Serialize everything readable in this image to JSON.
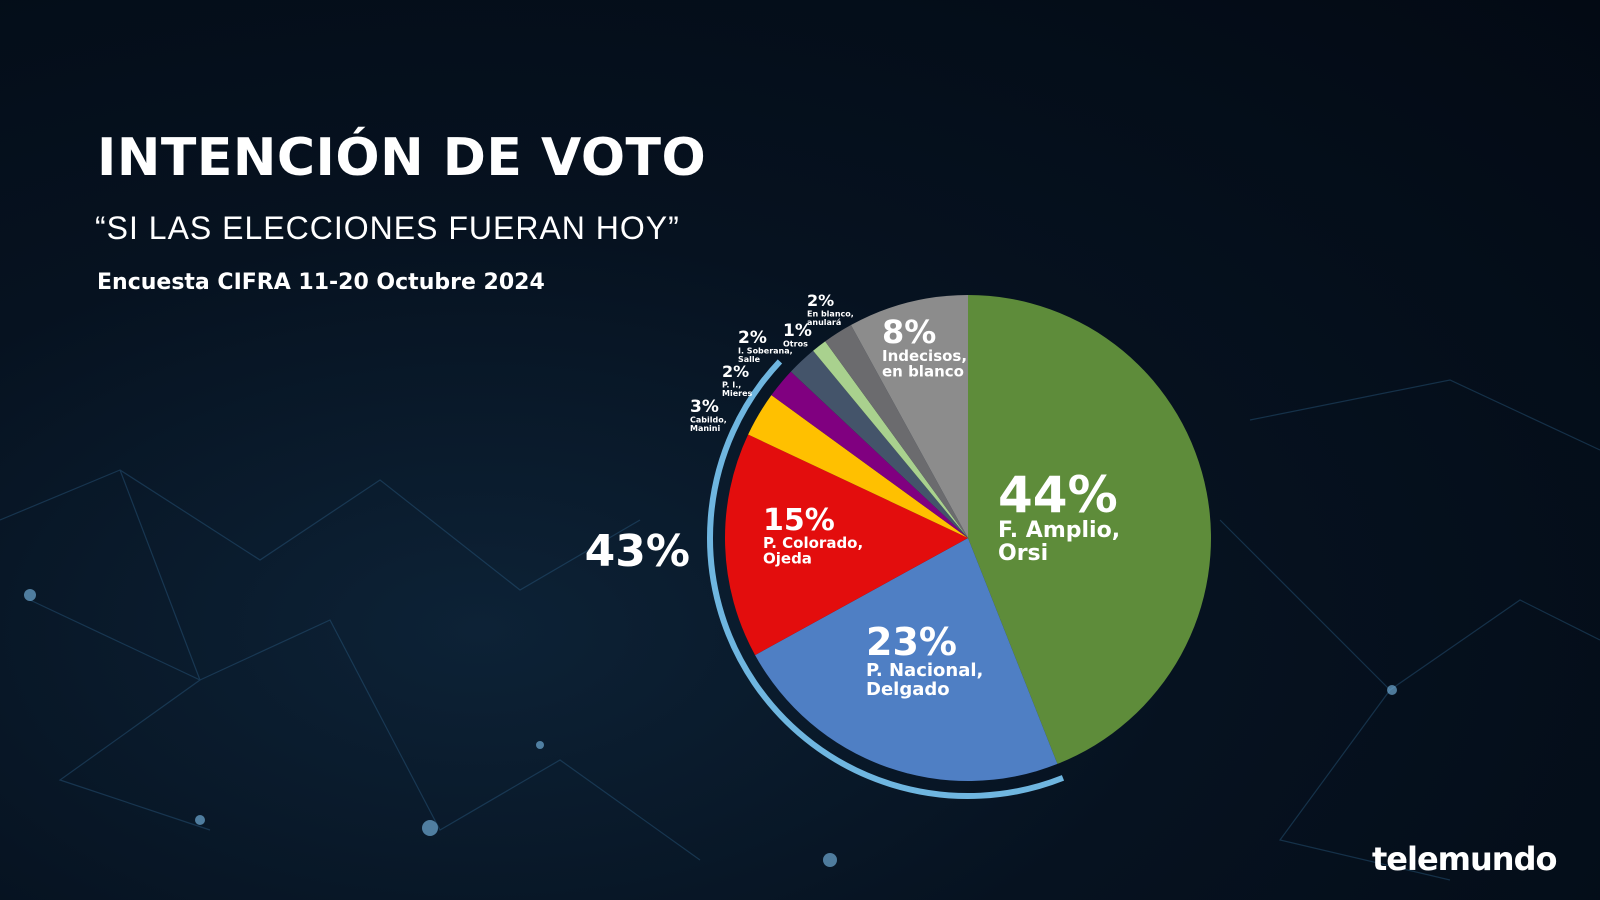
{
  "header": {
    "title": "INTENCIÓN DE VOTO",
    "subtitle": "“SI LAS ELECCIONES FUERAN HOY”",
    "source": "Encuesta CIFRA 11-20 Octubre 2024"
  },
  "logo": "telemundo",
  "chart_data": {
    "type": "pie",
    "title": "INTENCIÓN DE VOTO",
    "slices": [
      {
        "label": "F. Amplio, Orsi",
        "value": 44,
        "pct": "44%",
        "color": "#5e8c3a"
      },
      {
        "label": "P. Nacional, Delgado",
        "value": 23,
        "pct": "23%",
        "color": "#4f7fc4"
      },
      {
        "label": "P. Colorado, Ojeda",
        "value": 15,
        "pct": "15%",
        "color": "#e30d0d"
      },
      {
        "label": "Cabildo, Manini",
        "value": 3,
        "pct": "3%",
        "color": "#ffc000"
      },
      {
        "label": "P. I., Mieres",
        "value": 2,
        "pct": "2%",
        "color": "#800080"
      },
      {
        "label": "I. Soberana, Salle",
        "value": 2,
        "pct": "2%",
        "color": "#44546a"
      },
      {
        "label": "Otros",
        "value": 1,
        "pct": "1%",
        "color": "#a9d18e"
      },
      {
        "label": "En blanco, anulará",
        "value": 2,
        "pct": "2%",
        "color": "#6b6b6e"
      },
      {
        "label": "Indecisos, en blanco",
        "value": 8,
        "pct": "8%",
        "color": "#8c8c8c"
      }
    ],
    "group_annotation": {
      "label": "43%",
      "covers": [
        "P. Nacional, Delgado",
        "P. Colorado, Ojeda",
        "Cabildo, Manini",
        "P. I., Mieres"
      ],
      "color": "#6fb6e0"
    }
  }
}
